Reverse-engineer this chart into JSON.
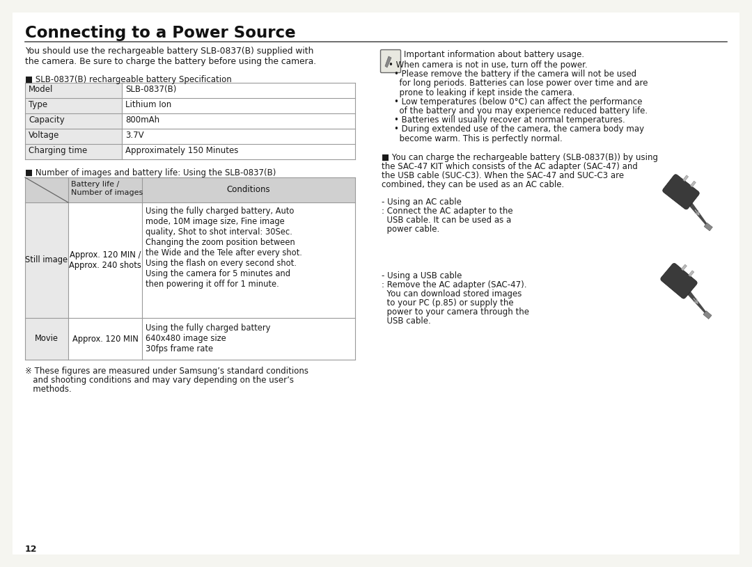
{
  "title": "Connecting to a Power Source",
  "bg_color": "#f5f5f0",
  "text_color": "#1a1a1a",
  "intro_text": "You should use the rechargeable battery SLB-0837(B) supplied with\nthe camera. Be sure to charge the battery before using the camera.",
  "spec_section_title": "■ SLB-0837(B) rechargeable battery Specification",
  "spec_table_rows": [
    [
      "Model",
      "SLB-0837(B)"
    ],
    [
      "Type",
      "Lithium Ion"
    ],
    [
      "Capacity",
      "800mAh"
    ],
    [
      "Voltage",
      "3.7V"
    ],
    [
      "Charging time",
      "Approximately 150 Minutes"
    ]
  ],
  "battery_life_title": "■ Number of images and battery life: Using the SLB-0837(B)",
  "still_image_conditions": "Using the fully charged battery, Auto\nmode, 10M image size, Fine image\nquality, Shot to shot interval: 30Sec.\nChanging the zoom position between\nthe Wide and the Tele after every shot.\nUsing the flash on every second shot.\nUsing the camera for 5 minutes and\nthen powering it off for 1 minute.",
  "movie_conditions": "Using the fully charged battery\n640x480 image size\n30fps frame rate",
  "footnote_line1": "※ These figures are measured under Samsung’s standard conditions",
  "footnote_line2": "   and shooting conditions and may vary depending on the user’s",
  "footnote_line3": "   methods.",
  "page_number": "12",
  "note_icon_text": "Important information about battery usage.",
  "note_bullet1": "• When camera is not in use, turn off the power.",
  "note_bullet2a": "• Please remove the battery if the camera will not be used",
  "note_bullet2b": "  for long periods. Batteries can lose power over time and are",
  "note_bullet2c": "  prone to leaking if kept inside the camera.",
  "note_bullet3a": "• Low temperatures (below 0°C) can affect the performance",
  "note_bullet3b": "  of the battery and you may experience reduced battery life.",
  "note_bullet4": "• Batteries will usually recover at normal temperatures.",
  "note_bullet5a": "• During extended use of the camera, the camera body may",
  "note_bullet5b": "  become warm. This is perfectly normal.",
  "charge_text_line1": "■ You can charge the rechargeable battery (SLB-0837(B)) by using",
  "charge_text_line2": "the SAC-47 KIT which consists of the AC adapter (SAC-47) and",
  "charge_text_line3": "the USB cable (SUC-C3). When the SAC-47 and SUC-C3 are",
  "charge_text_line4": "combined, they can be used as an AC cable.",
  "ac_line1": "- Using an AC cable",
  "ac_line2": ": Connect the AC adapter to the",
  "ac_line3": "  USB cable. It can be used as a",
  "ac_line4": "  power cable.",
  "usb_line1": "- Using a USB cable",
  "usb_line2": ": Remove the AC adapter (SAC-47).",
  "usb_line3": "  You can download stored images",
  "usb_line4": "  to your PC (p.85) or supply the",
  "usb_line5": "  power to your camera through the",
  "usb_line6": "  USB cable.",
  "table_header_bg": "#d0d0d0",
  "table_cell_bg": "#e8e8e8",
  "table_border_color": "#999999",
  "plug_color": "#3a3a3a",
  "cable_color": "#4a4a4a"
}
